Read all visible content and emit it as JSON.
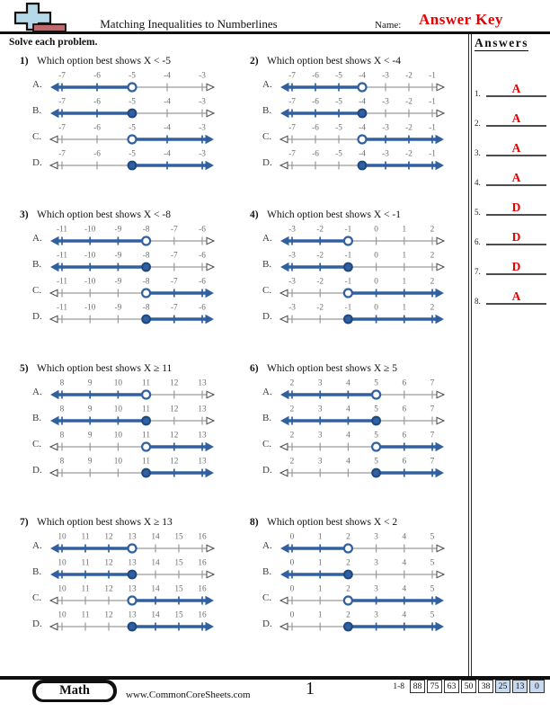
{
  "header": {
    "title": "Matching Inequalities to Numberlines",
    "name_label": "Name:",
    "name_value": "Answer Key"
  },
  "instruction": "Solve each problem.",
  "answers_panel": {
    "title": "Answers",
    "items": [
      {
        "num": "1.",
        "value": "A"
      },
      {
        "num": "2.",
        "value": "A"
      },
      {
        "num": "3.",
        "value": "A"
      },
      {
        "num": "4.",
        "value": "A"
      },
      {
        "num": "5.",
        "value": "D"
      },
      {
        "num": "6.",
        "value": "D"
      },
      {
        "num": "7.",
        "value": "D"
      },
      {
        "num": "8.",
        "value": "A"
      }
    ]
  },
  "problems": [
    {
      "num": "1)",
      "question": "Which option best shows X < -5",
      "ticks": [
        "-7",
        "-6",
        "-5",
        "-4",
        "-3"
      ],
      "point": "-5",
      "options": [
        {
          "letter": "A.",
          "circle": "open",
          "shade": "left"
        },
        {
          "letter": "B.",
          "circle": "closed",
          "shade": "left"
        },
        {
          "letter": "C.",
          "circle": "open",
          "shade": "right"
        },
        {
          "letter": "D.",
          "circle": "closed",
          "shade": "right"
        }
      ]
    },
    {
      "num": "2)",
      "question": "Which option best shows X < -4",
      "ticks": [
        "-7",
        "-6",
        "-5",
        "-4",
        "-3",
        "-2",
        "-1"
      ],
      "point": "-4",
      "options": [
        {
          "letter": "A.",
          "circle": "open",
          "shade": "left"
        },
        {
          "letter": "B.",
          "circle": "closed",
          "shade": "left"
        },
        {
          "letter": "C.",
          "circle": "open",
          "shade": "right"
        },
        {
          "letter": "D.",
          "circle": "closed",
          "shade": "right"
        }
      ]
    },
    {
      "num": "3)",
      "question": "Which option best shows X < -8",
      "ticks": [
        "-11",
        "-10",
        "-9",
        "-8",
        "-7",
        "-6"
      ],
      "point": "-8",
      "options": [
        {
          "letter": "A.",
          "circle": "open",
          "shade": "left"
        },
        {
          "letter": "B.",
          "circle": "closed",
          "shade": "left"
        },
        {
          "letter": "C.",
          "circle": "open",
          "shade": "right"
        },
        {
          "letter": "D.",
          "circle": "closed",
          "shade": "right"
        }
      ]
    },
    {
      "num": "4)",
      "question": "Which option best shows X < -1",
      "ticks": [
        "-3",
        "-2",
        "-1",
        "0",
        "1",
        "2"
      ],
      "point": "-1",
      "options": [
        {
          "letter": "A.",
          "circle": "open",
          "shade": "left"
        },
        {
          "letter": "B.",
          "circle": "closed",
          "shade": "left"
        },
        {
          "letter": "C.",
          "circle": "open",
          "shade": "right"
        },
        {
          "letter": "D.",
          "circle": "closed",
          "shade": "right"
        }
      ]
    },
    {
      "num": "5)",
      "question": "Which option best shows X ≥ 11",
      "ticks": [
        "8",
        "9",
        "10",
        "11",
        "12",
        "13"
      ],
      "point": "11",
      "options": [
        {
          "letter": "A.",
          "circle": "open",
          "shade": "left"
        },
        {
          "letter": "B.",
          "circle": "closed",
          "shade": "left"
        },
        {
          "letter": "C.",
          "circle": "open",
          "shade": "right"
        },
        {
          "letter": "D.",
          "circle": "closed",
          "shade": "right"
        }
      ]
    },
    {
      "num": "6)",
      "question": "Which option best shows X ≥ 5",
      "ticks": [
        "2",
        "3",
        "4",
        "5",
        "6",
        "7"
      ],
      "point": "5",
      "options": [
        {
          "letter": "A.",
          "circle": "open",
          "shade": "left"
        },
        {
          "letter": "B.",
          "circle": "closed",
          "shade": "left"
        },
        {
          "letter": "C.",
          "circle": "open",
          "shade": "right"
        },
        {
          "letter": "D.",
          "circle": "closed",
          "shade": "right"
        }
      ]
    },
    {
      "num": "7)",
      "question": "Which option best shows X ≥ 13",
      "ticks": [
        "10",
        "11",
        "12",
        "13",
        "14",
        "15",
        "16"
      ],
      "point": "13",
      "options": [
        {
          "letter": "A.",
          "circle": "open",
          "shade": "left"
        },
        {
          "letter": "B.",
          "circle": "closed",
          "shade": "left"
        },
        {
          "letter": "C.",
          "circle": "open",
          "shade": "right"
        },
        {
          "letter": "D.",
          "circle": "closed",
          "shade": "right"
        }
      ]
    },
    {
      "num": "8)",
      "question": "Which option best shows X < 2",
      "ticks": [
        "0",
        "1",
        "2",
        "3",
        "4",
        "5"
      ],
      "point": "2",
      "options": [
        {
          "letter": "A.",
          "circle": "open",
          "shade": "left"
        },
        {
          "letter": "B.",
          "circle": "closed",
          "shade": "left"
        },
        {
          "letter": "C.",
          "circle": "open",
          "shade": "right"
        },
        {
          "letter": "D.",
          "circle": "closed",
          "shade": "right"
        }
      ]
    }
  ],
  "footer": {
    "subject_badge": "Math",
    "website": "www.CommonCoreSheets.com",
    "page_number": "1",
    "score_range_label": "1-8",
    "score_cells": [
      {
        "value": "88",
        "highlighted": false
      },
      {
        "value": "75",
        "highlighted": false
      },
      {
        "value": "63",
        "highlighted": false
      },
      {
        "value": "50",
        "highlighted": false
      },
      {
        "value": "38",
        "highlighted": false
      },
      {
        "value": "25",
        "highlighted": true
      },
      {
        "value": "13",
        "highlighted": true
      },
      {
        "value": "0",
        "highlighted": true
      }
    ]
  },
  "colors": {
    "highlight_blue": "#30609f",
    "highlight_dark": "#1d4880",
    "line_gray": "#9a9a9a",
    "tick_label_gray": "#6d6d6d",
    "answer_red": "#e60000",
    "score_highlight": "#c6d9f0",
    "logo_blue": "#b5d9e8",
    "logo_brown": "#c0696c"
  }
}
